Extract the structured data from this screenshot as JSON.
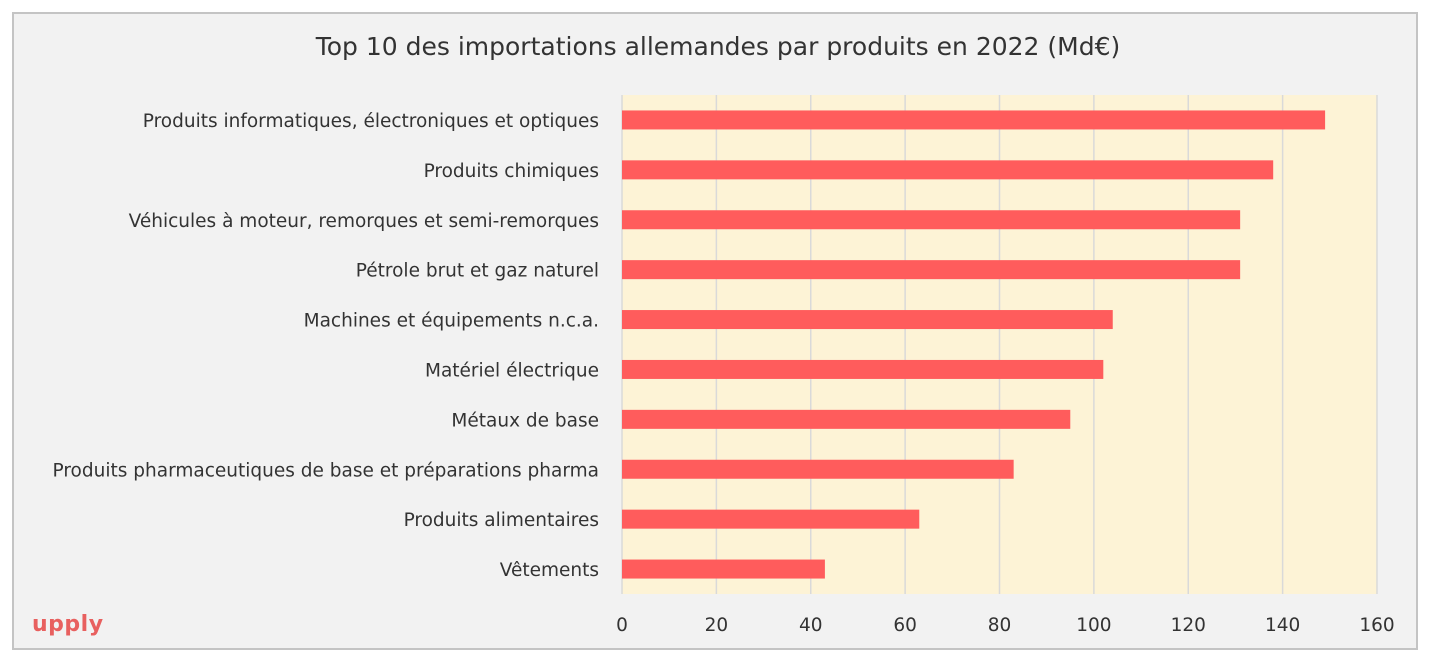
{
  "brand": {
    "logo_text": "upply",
    "logo_color": "#e8605f"
  },
  "chart_data": {
    "type": "bar",
    "orientation": "horizontal",
    "title": "Top 10 des importations allemandes par produits en 2022 (Md€)",
    "xlabel": "",
    "ylabel": "",
    "xlim": [
      0,
      160
    ],
    "ticks": [
      0,
      20,
      40,
      60,
      80,
      100,
      120,
      140,
      160
    ],
    "grid": true,
    "legend": "none",
    "bar_color": "#ff5c5c",
    "plot_background": "#fdf3d6",
    "categories": [
      "Produits informatiques, électroniques et optiques",
      "Produits chimiques",
      "Véhicules à moteur, remorques et semi-remorques",
      "Pétrole brut et gaz naturel",
      "Machines et équipements n.c.a.",
      "Matériel électrique",
      "Métaux de base",
      "Produits pharmaceutiques de base et préparations pharma",
      "Produits alimentaires",
      "Vêtements"
    ],
    "values": [
      149,
      138,
      131,
      131,
      104,
      102,
      95,
      83,
      63,
      43
    ]
  }
}
